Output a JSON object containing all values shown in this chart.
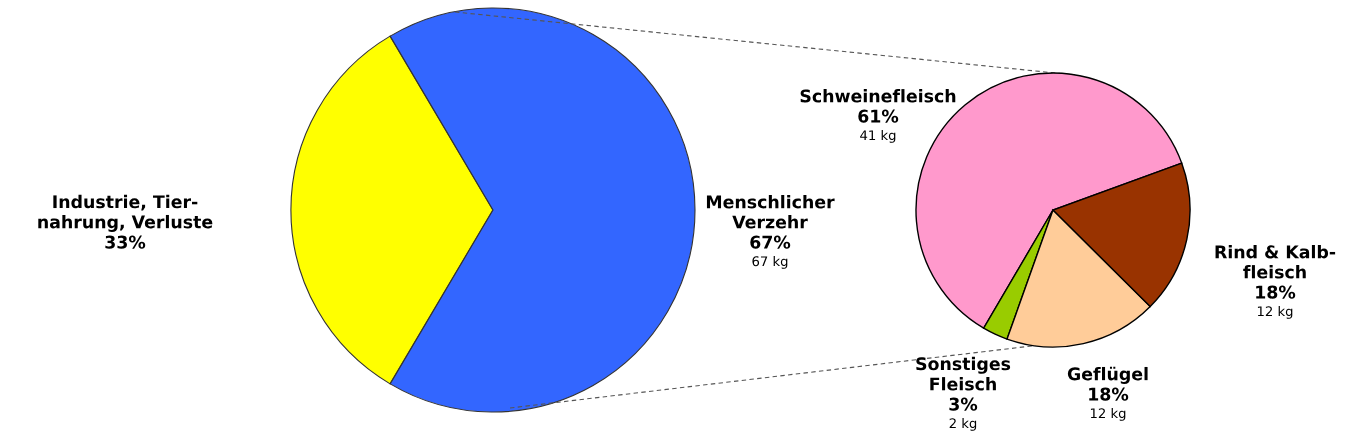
{
  "chart_data": [
    {
      "type": "pie",
      "categories": [
        "Industrie, Tier-\nnahrung, Verluste",
        "Menschlicher\nVerzehr"
      ],
      "values": [
        33,
        67
      ],
      "colors": [
        "#ffff00",
        "#3366ff"
      ],
      "value_labels": [
        "33%",
        "67%\n67 kg"
      ]
    },
    {
      "type": "pie",
      "categories": [
        "Schweinefleisch",
        "Sonstiges\nFleisch",
        "Geflügel",
        "Rind & Kalb-\nfleisch"
      ],
      "values": [
        61,
        3,
        18,
        18
      ],
      "colors": [
        "#ff99cc",
        "#99cc00",
        "#ffcc99",
        "#993300"
      ],
      "value_labels": [
        "61%\n41 kg",
        "3%\n2 kg",
        "18%\n12 kg",
        "18%\n12 kg"
      ]
    }
  ]
}
